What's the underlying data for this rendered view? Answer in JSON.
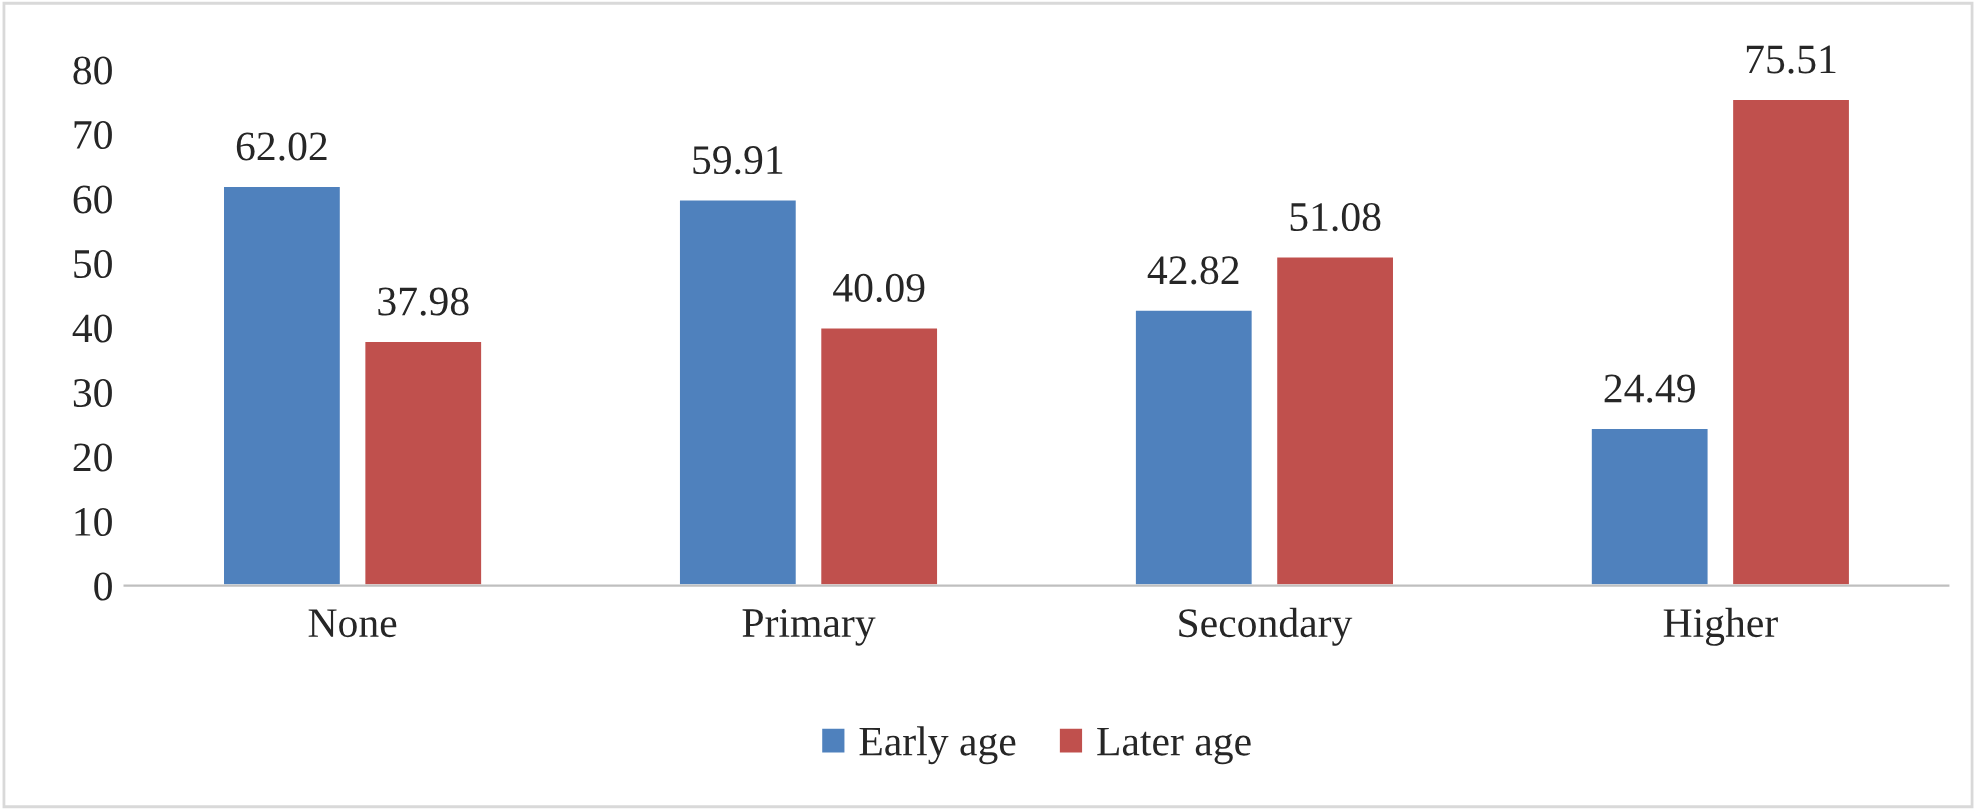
{
  "chart_data": {
    "type": "bar",
    "categories": [
      "None",
      "Primary",
      "Secondary",
      "Higher"
    ],
    "series": [
      {
        "name": "Early age",
        "color": "#4f81bd",
        "values": [
          62.02,
          59.91,
          42.82,
          24.49
        ]
      },
      {
        "name": "Later age",
        "color": "#c0504d",
        "values": [
          37.98,
          40.09,
          51.08,
          75.51
        ]
      }
    ],
    "ylim": [
      0,
      80
    ],
    "yticks": [
      0,
      10,
      20,
      30,
      40,
      50,
      60,
      70,
      80
    ],
    "grid": false,
    "legend": "bottom",
    "data_labels": true
  }
}
